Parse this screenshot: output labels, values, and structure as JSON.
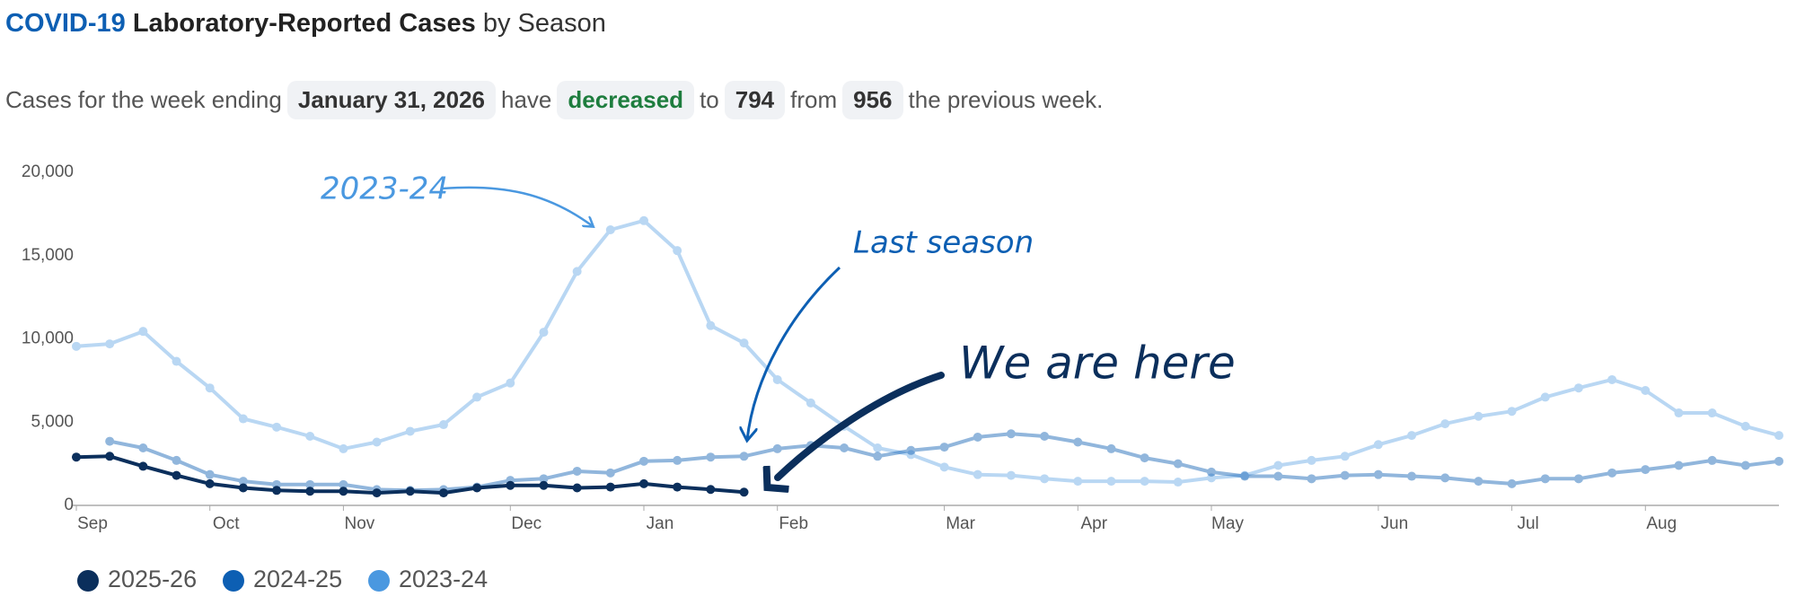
{
  "header": {
    "title_lead": "COVID-19",
    "title_main": "Laboratory-Reported Cases",
    "title_tail": "by Season"
  },
  "summary": {
    "text1": "Cases for the week ending",
    "week": "January 31, 2026",
    "text2": "have",
    "trend": "decreased",
    "text3": "to",
    "current": 794,
    "text4": "from",
    "previous": 956,
    "text5": "the previous week."
  },
  "chart_data": {
    "type": "line",
    "categories": [
      "Sep",
      null,
      null,
      null,
      "Oct",
      null,
      null,
      null,
      "Nov",
      null,
      null,
      null,
      null,
      "Dec",
      null,
      null,
      null,
      "Jan",
      null,
      null,
      null,
      "Feb",
      null,
      null,
      null,
      null,
      "Mar",
      null,
      null,
      null,
      "Apr",
      null,
      null,
      null,
      "May",
      null,
      null,
      null,
      null,
      "Jun",
      null,
      null,
      null,
      "Jul",
      null,
      null,
      null,
      "Aug",
      null,
      null,
      null,
      null
    ],
    "series": [
      {
        "name": "2025-26",
        "color": "#0b2f5c",
        "values": [
          2900,
          2950,
          2350,
          1800,
          1300,
          1050,
          900,
          850,
          850,
          750,
          850,
          750,
          1050,
          1200,
          1200,
          1050,
          1100,
          1300,
          1100,
          956,
          794,
          null,
          null,
          null,
          null,
          null,
          null,
          null,
          null,
          null,
          null,
          null,
          null,
          null,
          null,
          null,
          null,
          null,
          null,
          null,
          null,
          null,
          null,
          null,
          null,
          null,
          null,
          null,
          null,
          null,
          null,
          null
        ]
      },
      {
        "name": "2024-25",
        "color": "#0d5fb3",
        "values": [
          null,
          3850,
          3450,
          2700,
          1850,
          1450,
          1250,
          1250,
          1250,
          950,
          900,
          950,
          1100,
          1500,
          1600,
          2050,
          1950,
          2650,
          2700,
          2900,
          2950,
          3400,
          3600,
          3450,
          2950,
          3300,
          3500,
          4100,
          4300,
          4150,
          3800,
          3400,
          2850,
          2500,
          2000,
          1750,
          1750,
          1600,
          1800,
          1850,
          1750,
          1650,
          1450,
          1300,
          1600,
          1600,
          1950,
          2150,
          2400,
          2700,
          2400,
          2650
        ]
      },
      {
        "name": "2023-24",
        "color": "#4a98e0",
        "values": [
          9550,
          9700,
          10450,
          8650,
          7050,
          5200,
          4700,
          4150,
          3400,
          3800,
          4450,
          4850,
          6500,
          7350,
          10400,
          14050,
          16550,
          17100,
          15300,
          10800,
          9750,
          7550,
          6150,
          4750,
          3450,
          3050,
          2300,
          1850,
          1800,
          1600,
          1450,
          1450,
          1450,
          1400,
          1650,
          1800,
          2400,
          2700,
          2950,
          3650,
          4200,
          4900,
          5350,
          5650,
          6500,
          7050,
          7550,
          6900,
          5550,
          5550,
          4750,
          4200
        ]
      }
    ],
    "ylim": [
      0,
      20000
    ],
    "yticks": [
      0,
      {
        "value": 5000,
        "label": "5,000"
      },
      {
        "value": 10000,
        "label": "10,000"
      },
      {
        "value": 15000,
        "label": "15,000"
      },
      {
        "value": 20000,
        "label": "20,000"
      }
    ],
    "grid": false,
    "annotations": [
      "2023-24",
      "Last season",
      "We are here"
    ]
  }
}
